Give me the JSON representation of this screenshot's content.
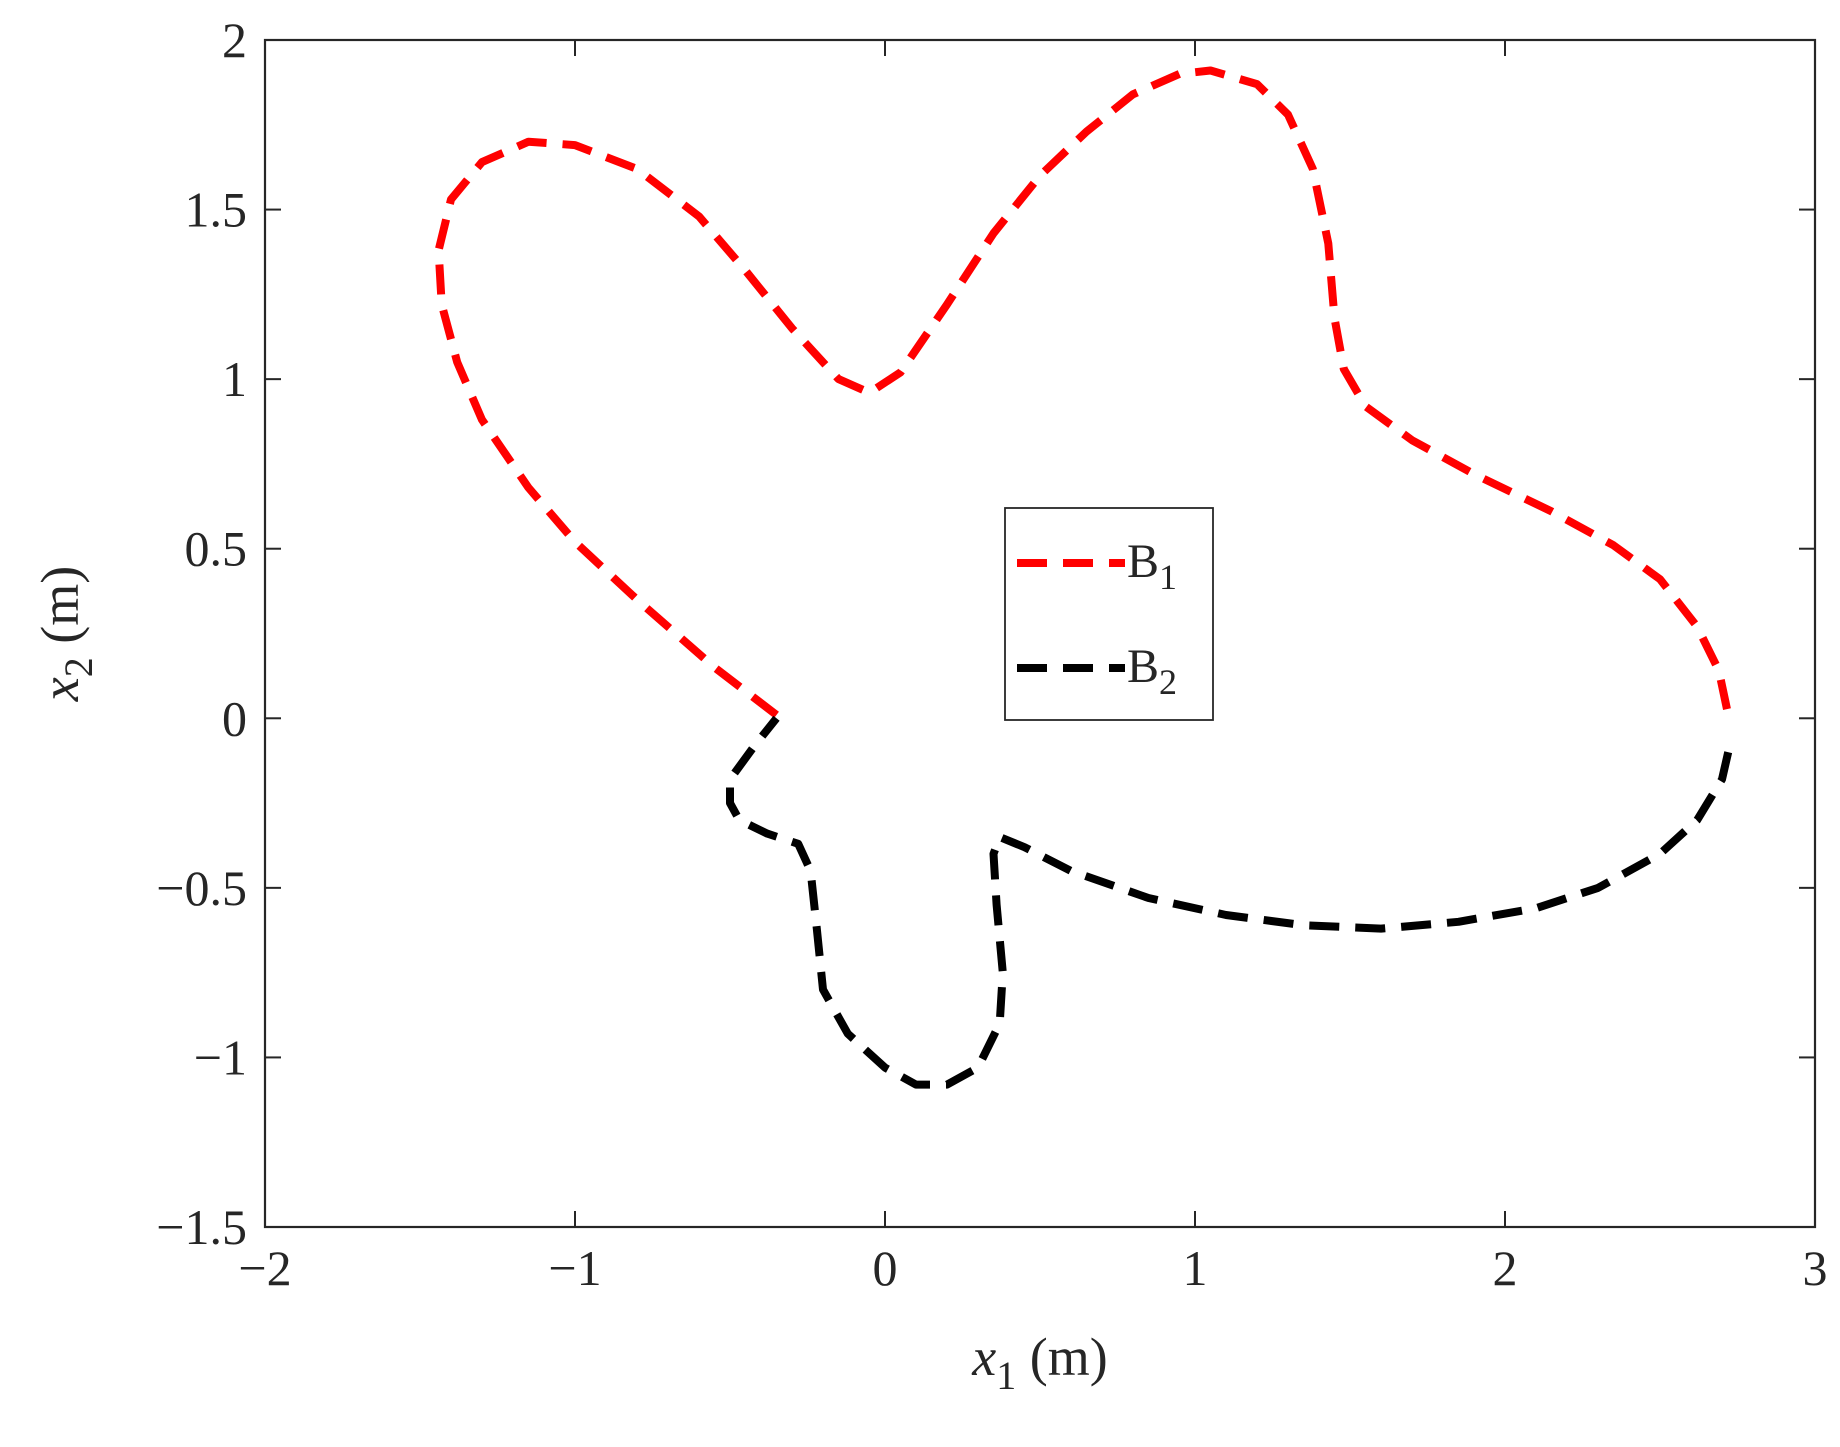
{
  "chart_data": {
    "type": "line",
    "xlabel": {
      "var": "x",
      "sub": "1",
      "unit": " (m)"
    },
    "ylabel": {
      "var": "x",
      "sub": "2",
      "unit": " (m)"
    },
    "xlim": [
      -2,
      3
    ],
    "ylim": [
      -1.5,
      2
    ],
    "xticks": [
      -2,
      -1,
      0,
      1,
      2,
      3
    ],
    "yticks": [
      -1.5,
      -1,
      -0.5,
      0,
      0.5,
      1,
      1.5,
      2
    ],
    "xtick_labels": [
      "−2",
      "−1",
      "0",
      "1",
      "2",
      "3"
    ],
    "ytick_labels": [
      "−1.5",
      "−1",
      "−0.5",
      "0",
      "0.5",
      "1",
      "1.5",
      "2"
    ],
    "grid": false,
    "legend_position": "center",
    "series": [
      {
        "name": "B",
        "name_sub": "1",
        "color": "#ff0000",
        "dash": "dashed",
        "points": [
          [
            -0.35,
            0.01
          ],
          [
            -0.55,
            0.15
          ],
          [
            -0.8,
            0.35
          ],
          [
            -1.0,
            0.52
          ],
          [
            -1.15,
            0.68
          ],
          [
            -1.3,
            0.88
          ],
          [
            -1.38,
            1.05
          ],
          [
            -1.43,
            1.22
          ],
          [
            -1.44,
            1.38
          ],
          [
            -1.4,
            1.53
          ],
          [
            -1.3,
            1.64
          ],
          [
            -1.15,
            1.7
          ],
          [
            -1.0,
            1.69
          ],
          [
            -0.8,
            1.62
          ],
          [
            -0.6,
            1.48
          ],
          [
            -0.45,
            1.32
          ],
          [
            -0.3,
            1.15
          ],
          [
            -0.15,
            1.0
          ],
          [
            -0.05,
            0.96
          ],
          [
            0.05,
            1.02
          ],
          [
            0.2,
            1.22
          ],
          [
            0.35,
            1.43
          ],
          [
            0.5,
            1.6
          ],
          [
            0.65,
            1.73
          ],
          [
            0.8,
            1.84
          ],
          [
            0.95,
            1.9
          ],
          [
            1.05,
            1.91
          ],
          [
            1.2,
            1.87
          ],
          [
            1.3,
            1.78
          ],
          [
            1.38,
            1.62
          ],
          [
            1.43,
            1.4
          ],
          [
            1.45,
            1.18
          ],
          [
            1.48,
            1.03
          ],
          [
            1.55,
            0.92
          ],
          [
            1.7,
            0.82
          ],
          [
            1.9,
            0.72
          ],
          [
            2.15,
            0.61
          ],
          [
            2.35,
            0.51
          ],
          [
            2.5,
            0.41
          ],
          [
            2.62,
            0.27
          ],
          [
            2.69,
            0.14
          ],
          [
            2.72,
            0.01
          ]
        ]
      },
      {
        "name": "B",
        "name_sub": "2",
        "color": "#000000",
        "dash": "dashed",
        "points": [
          [
            2.72,
            -0.1
          ],
          [
            2.7,
            -0.18
          ],
          [
            2.62,
            -0.3
          ],
          [
            2.5,
            -0.4
          ],
          [
            2.3,
            -0.5
          ],
          [
            2.1,
            -0.56
          ],
          [
            1.85,
            -0.6
          ],
          [
            1.6,
            -0.62
          ],
          [
            1.35,
            -0.61
          ],
          [
            1.1,
            -0.58
          ],
          [
            0.85,
            -0.53
          ],
          [
            0.6,
            -0.45
          ],
          [
            0.45,
            -0.38
          ],
          [
            0.37,
            -0.35
          ],
          [
            0.35,
            -0.4
          ],
          [
            0.36,
            -0.55
          ],
          [
            0.38,
            -0.75
          ],
          [
            0.37,
            -0.9
          ],
          [
            0.3,
            -1.03
          ],
          [
            0.2,
            -1.08
          ],
          [
            0.1,
            -1.08
          ],
          [
            0.0,
            -1.03
          ],
          [
            -0.12,
            -0.93
          ],
          [
            -0.2,
            -0.8
          ],
          [
            -0.22,
            -0.62
          ],
          [
            -0.24,
            -0.45
          ],
          [
            -0.28,
            -0.37
          ],
          [
            -0.38,
            -0.34
          ],
          [
            -0.47,
            -0.3
          ],
          [
            -0.5,
            -0.25
          ],
          [
            -0.5,
            -0.18
          ],
          [
            -0.42,
            -0.08
          ],
          [
            -0.35,
            0.0
          ]
        ]
      }
    ]
  }
}
